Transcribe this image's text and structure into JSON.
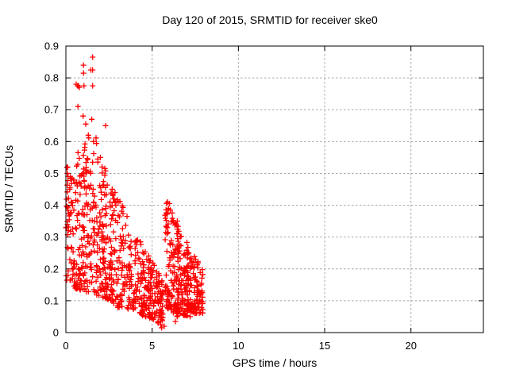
{
  "window": {
    "background": "#ffffff"
  },
  "chart_data": {
    "type": "scatter",
    "title": "Day 120 of 2015, SRMTID for receiver ske0",
    "xlabel": "GPS time / hours",
    "ylabel": "SRMTID / TECUs",
    "xlim": [
      0,
      24.2
    ],
    "ylim": [
      0,
      0.9
    ],
    "xticks": [
      0,
      5,
      10,
      15,
      20
    ],
    "yticks": [
      0,
      0.1,
      0.2,
      0.3,
      0.4,
      0.5,
      0.6,
      0.7,
      0.8,
      0.9
    ],
    "grid": true,
    "legend": false,
    "marker": "plus",
    "marker_size": 7,
    "colors": {
      "marker": "#ff0000",
      "grid": "#a6a6a6",
      "axis": "#000000",
      "background": "#ffffff",
      "text": "#000000"
    },
    "description": "Dense cloud of red plus markers from 0 to ~8 h: a tall spike (SRMTID up to 0.87 TECUs) between 0.5-2.5 h decaying to a low band (~0.05-0.2) near 5.5 h, then a second cluster from 5.75-8 h peaking near 0.42 and decaying to ~0.1; no data beyond 8 h.",
    "seed": 42,
    "point_clusters": [
      {
        "n": 55,
        "x": [
          0.0,
          0.45
        ],
        "top": [
          0.52,
          0.52
        ],
        "bot": [
          0.16,
          0.15
        ],
        "shape": 1.0
      },
      {
        "n": 150,
        "x": [
          0.45,
          1.6
        ],
        "top": [
          0.55,
          0.64
        ],
        "bot": [
          0.14,
          0.12
        ],
        "shape": 1.7
      },
      {
        "n": 160,
        "x": [
          1.6,
          2.7
        ],
        "top": [
          0.64,
          0.46
        ],
        "bot": [
          0.12,
          0.1
        ],
        "shape": 1.7
      },
      {
        "n": 145,
        "x": [
          2.7,
          4.2
        ],
        "top": [
          0.46,
          0.3
        ],
        "bot": [
          0.08,
          0.07
        ],
        "shape": 1.6
      },
      {
        "n": 175,
        "x": [
          4.2,
          5.65
        ],
        "top": [
          0.3,
          0.16
        ],
        "bot": [
          0.06,
          0.02
        ],
        "shape": 1.2
      },
      {
        "n": 115,
        "x": [
          5.75,
          6.5
        ],
        "top": [
          0.42,
          0.35
        ],
        "bot": [
          0.08,
          0.05
        ],
        "shape": 1.5
      },
      {
        "n": 100,
        "x": [
          6.4,
          7.1
        ],
        "top": [
          0.34,
          0.3
        ],
        "bot": [
          0.06,
          0.05
        ],
        "shape": 1.5
      },
      {
        "n": 115,
        "x": [
          7.0,
          7.95
        ],
        "top": [
          0.28,
          0.2
        ],
        "bot": [
          0.06,
          0.06
        ],
        "shape": 1.4
      }
    ],
    "notable_points": [
      [
        1.55,
        0.865
      ],
      [
        1.02,
        0.84
      ],
      [
        1.45,
        0.825
      ],
      [
        1.55,
        0.825
      ],
      [
        1.02,
        0.815
      ],
      [
        0.6,
        0.78
      ],
      [
        0.68,
        0.775
      ],
      [
        0.73,
        0.775
      ],
      [
        0.78,
        0.77
      ],
      [
        1.05,
        0.775
      ],
      [
        1.55,
        0.775
      ],
      [
        0.7,
        0.71
      ],
      [
        1.0,
        0.68
      ],
      [
        1.5,
        0.67
      ],
      [
        1.15,
        0.655
      ],
      [
        2.3,
        0.65
      ],
      [
        1.3,
        0.62
      ],
      [
        1.6,
        0.6
      ],
      [
        2.0,
        0.55
      ],
      [
        1.85,
        0.545
      ],
      [
        2.1,
        0.52
      ],
      [
        0.1,
        0.52
      ],
      [
        0.08,
        0.5
      ],
      [
        0.13,
        0.49
      ],
      [
        2.85,
        0.44
      ],
      [
        2.75,
        0.42
      ],
      [
        2.9,
        0.4
      ],
      [
        5.9,
        0.41
      ],
      [
        6.0,
        0.405
      ],
      [
        5.95,
        0.39
      ],
      [
        6.05,
        0.385
      ],
      [
        5.55,
        0.015
      ],
      [
        5.35,
        0.03
      ],
      [
        5.5,
        0.025
      ],
      [
        5.7,
        0.02
      ],
      [
        6.35,
        0.035
      ],
      [
        7.2,
        0.05
      ],
      [
        6.45,
        0.05
      ]
    ]
  }
}
